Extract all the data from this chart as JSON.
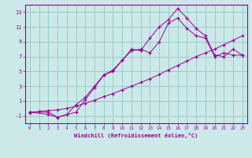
{
  "xlabel": "Windchill (Refroidissement éolien,°C)",
  "bg_color": "#cce8e8",
  "grid_color": "#99cccc",
  "line_color": "#990099",
  "xlim": [
    -0.5,
    23.5
  ],
  "ylim": [
    -2,
    14
  ],
  "xticks": [
    0,
    1,
    2,
    3,
    4,
    5,
    6,
    7,
    8,
    9,
    10,
    11,
    12,
    13,
    14,
    15,
    16,
    17,
    18,
    19,
    20,
    21,
    22,
    23
  ],
  "yticks": [
    -1,
    1,
    3,
    5,
    7,
    9,
    11,
    13
  ],
  "line1_x": [
    0,
    2,
    3,
    5,
    6,
    7,
    8,
    9,
    10,
    11,
    12,
    13,
    14,
    15,
    16,
    17,
    18,
    19,
    20,
    21,
    22,
    23
  ],
  "line1_y": [
    -0.5,
    -0.5,
    -1.2,
    -0.5,
    1.2,
    2.8,
    4.5,
    5.2,
    6.5,
    8.0,
    7.8,
    9.5,
    11.0,
    12.0,
    13.5,
    12.2,
    10.8,
    9.8,
    7.2,
    7.0,
    8.0,
    7.2
  ],
  "line2_x": [
    0,
    2,
    3,
    4,
    5,
    6,
    7,
    8,
    9,
    10,
    11,
    12,
    13,
    14,
    15,
    16,
    17,
    18,
    19,
    20,
    21,
    22,
    23
  ],
  "line2_y": [
    -0.5,
    -0.8,
    -1.2,
    -0.8,
    0.5,
    1.5,
    3.0,
    4.5,
    5.0,
    6.5,
    7.8,
    8.0,
    7.5,
    9.0,
    11.5,
    12.2,
    10.8,
    9.8,
    9.5,
    7.0,
    7.5,
    7.2,
    7.2
  ],
  "line3_x": [
    0,
    1,
    2,
    3,
    4,
    5,
    6,
    7,
    8,
    9,
    10,
    11,
    12,
    13,
    14,
    15,
    16,
    17,
    18,
    19,
    20,
    21,
    22,
    23
  ],
  "line3_y": [
    -0.6,
    -0.4,
    -0.3,
    -0.2,
    0.0,
    0.3,
    0.7,
    1.1,
    1.6,
    2.0,
    2.5,
    3.0,
    3.5,
    4.0,
    4.6,
    5.2,
    5.8,
    6.4,
    7.0,
    7.5,
    8.0,
    8.6,
    9.2,
    9.8
  ]
}
